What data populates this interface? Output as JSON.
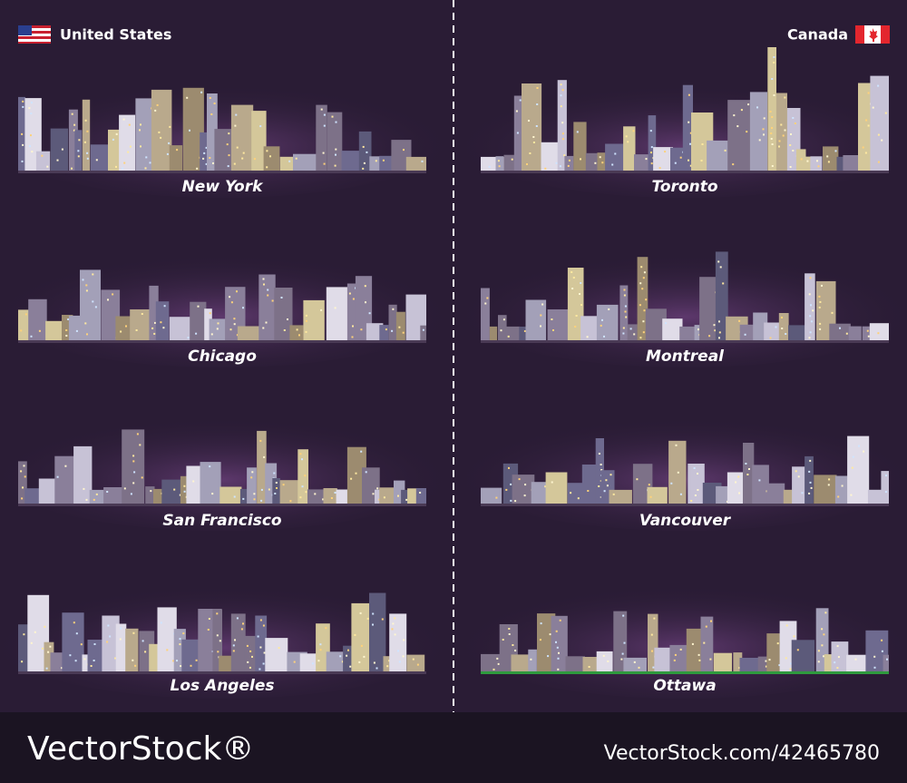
{
  "header": {
    "left": "United States",
    "right": "Canada"
  },
  "cities": {
    "left": [
      "New York",
      "Chicago",
      "San Francisco",
      "Los Angeles"
    ],
    "right": [
      "Toronto",
      "Montreal",
      "Vancouver",
      "Ottawa"
    ]
  },
  "footer": {
    "brand": "VectorStock®",
    "id": "VectorStock.com/42465780"
  }
}
